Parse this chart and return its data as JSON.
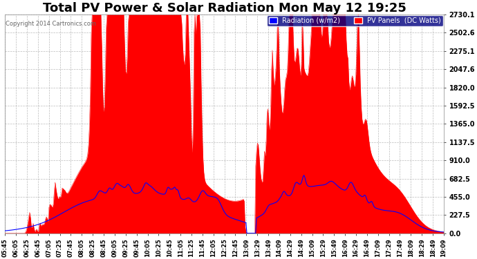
{
  "title": "Total PV Power & Solar Radiation Mon May 12 19:25",
  "copyright": "Copyright 2014 Cartronics.com",
  "legend_items": [
    "Radiation (w/m2)",
    "PV Panels  (DC Watts)"
  ],
  "legend_colors": [
    "#0000ff",
    "#ff0000"
  ],
  "bg_color": "#ffffff",
  "plot_bg_color": "#ffffff",
  "grid_color": "#aaaaaa",
  "yticks": [
    0.0,
    227.5,
    455.0,
    682.5,
    910.0,
    1137.5,
    1365.0,
    1592.5,
    1820.0,
    2047.6,
    2275.1,
    2502.6,
    2730.1
  ],
  "ylim": [
    0.0,
    2730.1
  ],
  "title_fontsize": 13,
  "title_color": "#000000",
  "tick_color": "#000000",
  "xtick_labels": [
    "05:45",
    "06:05",
    "06:25",
    "06:45",
    "07:05",
    "07:25",
    "07:45",
    "08:05",
    "08:25",
    "08:45",
    "09:05",
    "09:25",
    "09:45",
    "10:05",
    "10:25",
    "10:45",
    "11:05",
    "11:25",
    "11:45",
    "12:05",
    "12:25",
    "12:45",
    "13:09",
    "13:29",
    "13:49",
    "14:09",
    "14:29",
    "14:49",
    "15:09",
    "15:29",
    "15:49",
    "16:09",
    "16:29",
    "16:49",
    "17:09",
    "17:29",
    "17:49",
    "18:09",
    "18:29",
    "18:49",
    "19:09"
  ],
  "red_fill_color": "#ff0000",
  "blue_line_color": "#0000ff"
}
